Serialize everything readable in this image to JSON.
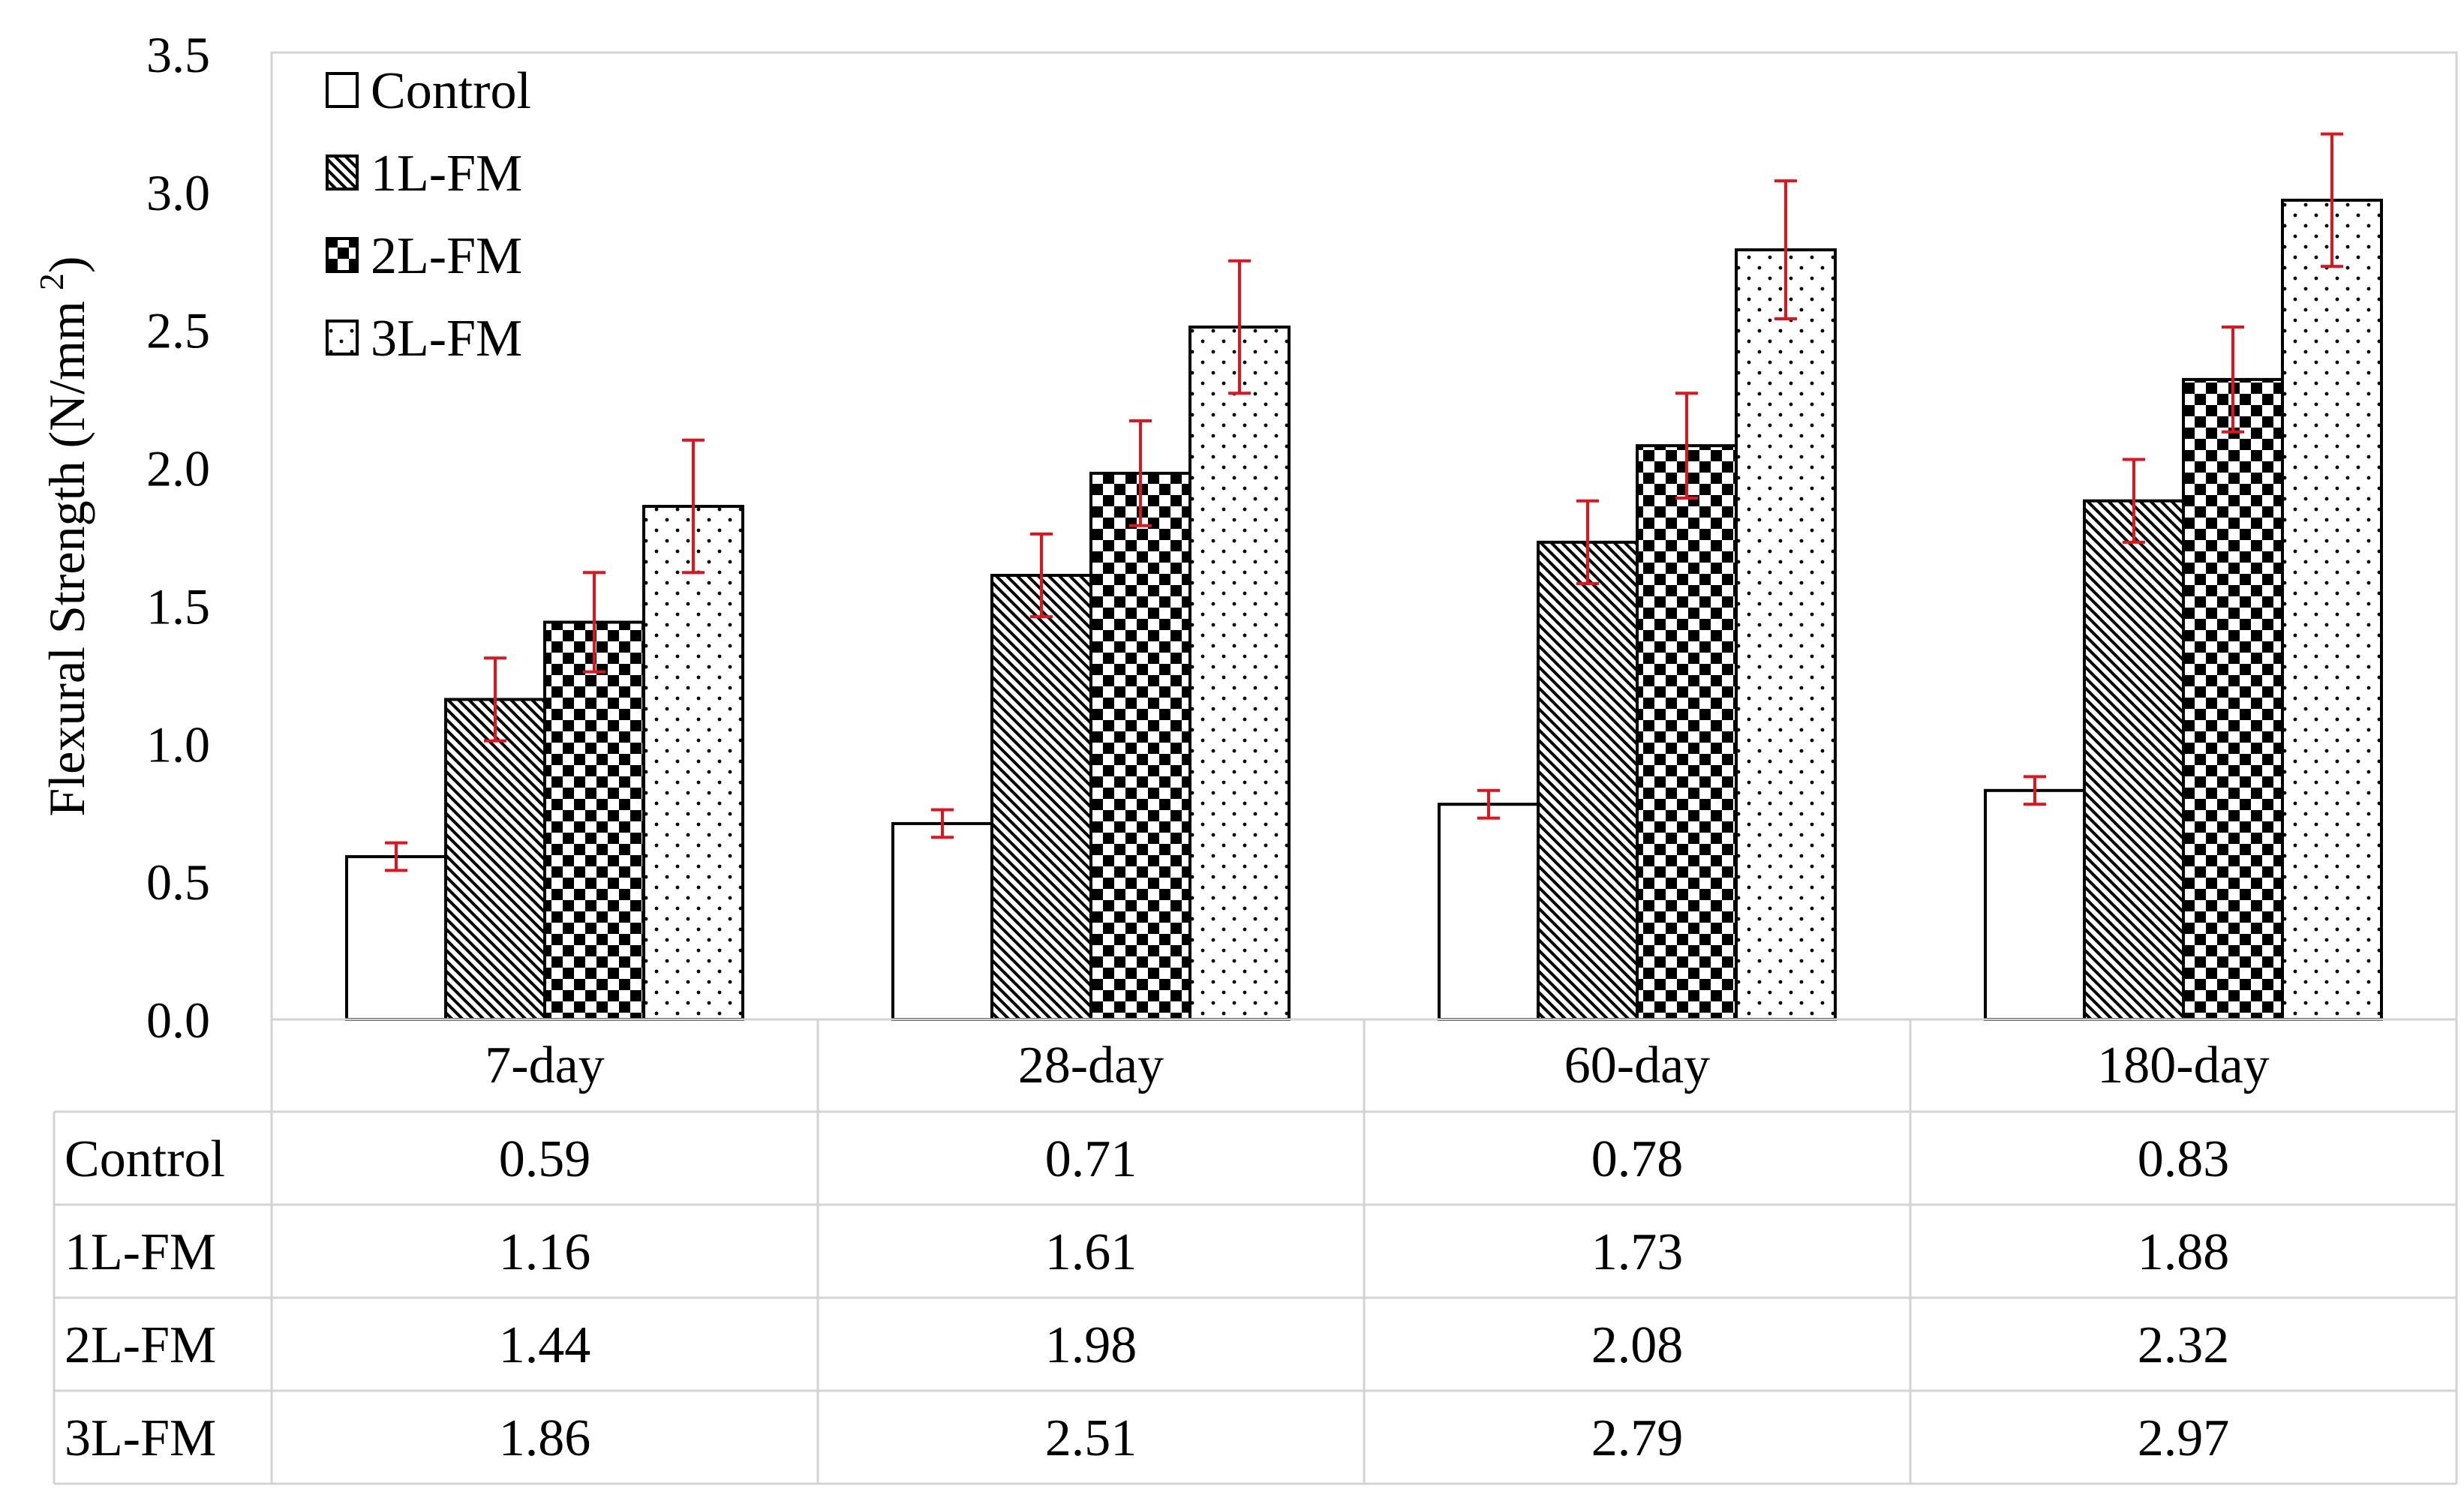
{
  "chart_data": {
    "type": "bar",
    "title": "",
    "xlabel": "",
    "ylabel": "Flexural Strength (N/mm",
    "ylabel_superscript": "2",
    "ylabel_close": ")",
    "ylim": [
      0,
      3.5
    ],
    "yticks": [
      "0.0",
      "0.5",
      "1.0",
      "1.5",
      "2.0",
      "2.5",
      "3.0",
      "3.5"
    ],
    "categories": [
      "7-day",
      "28-day",
      "60-day",
      "180-day"
    ],
    "series": [
      {
        "name": "Control",
        "pattern": "plain",
        "values": [
          0.59,
          0.71,
          0.78,
          0.83
        ],
        "errors": [
          0.05,
          0.05,
          0.05,
          0.05
        ]
      },
      {
        "name": "1L-FM",
        "pattern": "diagonal",
        "values": [
          1.16,
          1.61,
          1.73,
          1.88
        ],
        "errors": [
          0.15,
          0.15,
          0.15,
          0.15
        ]
      },
      {
        "name": "2L-FM",
        "pattern": "checker",
        "values": [
          1.44,
          1.98,
          2.08,
          2.32
        ],
        "errors": [
          0.18,
          0.19,
          0.19,
          0.19
        ]
      },
      {
        "name": "3L-FM",
        "pattern": "dots",
        "values": [
          1.86,
          2.51,
          2.79,
          2.97
        ],
        "errors": [
          0.24,
          0.24,
          0.25,
          0.24
        ]
      }
    ],
    "data_table": {
      "rows": [
        {
          "label": "Control",
          "cells": [
            "0.59",
            "0.71",
            "0.78",
            "0.83"
          ]
        },
        {
          "label": "1L-FM",
          "cells": [
            "1.16",
            "1.61",
            "1.73",
            "1.88"
          ]
        },
        {
          "label": "2L-FM",
          "cells": [
            "1.44",
            "1.98",
            "2.08",
            "2.32"
          ]
        },
        {
          "label": "3L-FM",
          "cells": [
            "1.86",
            "2.51",
            "2.79",
            "2.97"
          ]
        }
      ]
    },
    "legend_position": "top-left",
    "grid": false,
    "colors": {
      "bar_fill": "#ffffff",
      "bar_stroke": "#000000",
      "error_bar": "#e0141c",
      "table_border": "#d3d3d3"
    }
  }
}
